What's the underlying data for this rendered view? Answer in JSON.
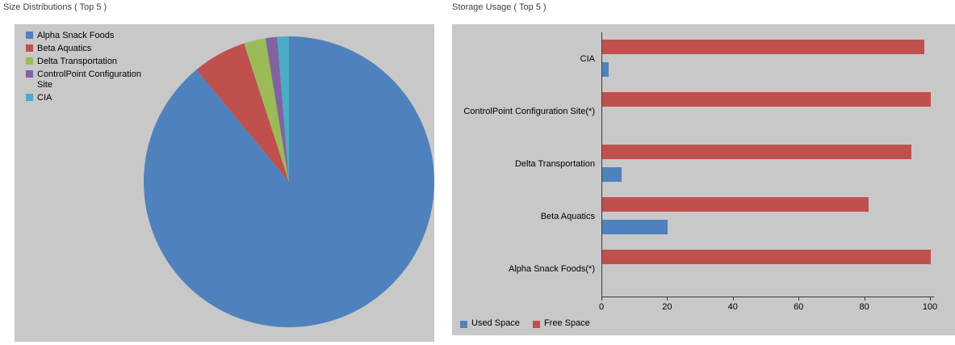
{
  "left_panel": {
    "title": "Size Distributions ( Top 5 )"
  },
  "right_panel": {
    "title": "Storage Usage ( Top 5 )"
  },
  "colors": {
    "blue": "#4f81bd",
    "red": "#c0504d",
    "green": "#9bbb59",
    "purple": "#8064a2",
    "teal": "#4bacc6",
    "panel_background": "#c8c8c8",
    "axis": "#3d3d3d"
  },
  "chart_data": [
    {
      "type": "pie",
      "title": "Size Distributions ( Top 5 )",
      "categories": [
        "Alpha Snack Foods",
        "Beta Aquatics",
        "Delta Transportation",
        "ControlPoint Configuration Site",
        "CIA"
      ],
      "values": [
        89,
        6,
        2.4,
        1.3,
        1.3
      ],
      "colors": [
        "#4f81bd",
        "#c0504d",
        "#9bbb59",
        "#8064a2",
        "#4bacc6"
      ],
      "legend_position": "top-left"
    },
    {
      "type": "bar",
      "orientation": "horizontal",
      "title": "Storage Usage ( Top 5 )",
      "categories": [
        "CIA",
        "ControlPoint Configuration Site(*)",
        "Delta Transportation",
        "Beta Aquatics",
        "Alpha Snack Foods(*)"
      ],
      "series": [
        {
          "name": "Used Space",
          "color": "#4f81bd",
          "values": [
            2,
            0,
            6,
            20,
            0
          ]
        },
        {
          "name": "Free Space",
          "color": "#c0504d",
          "values": [
            98,
            100,
            94,
            81,
            100
          ]
        }
      ],
      "xlim": [
        0,
        100
      ],
      "xticks": [
        0,
        20,
        40,
        60,
        80,
        100
      ],
      "grid": false,
      "legend_position": "bottom-left"
    }
  ]
}
